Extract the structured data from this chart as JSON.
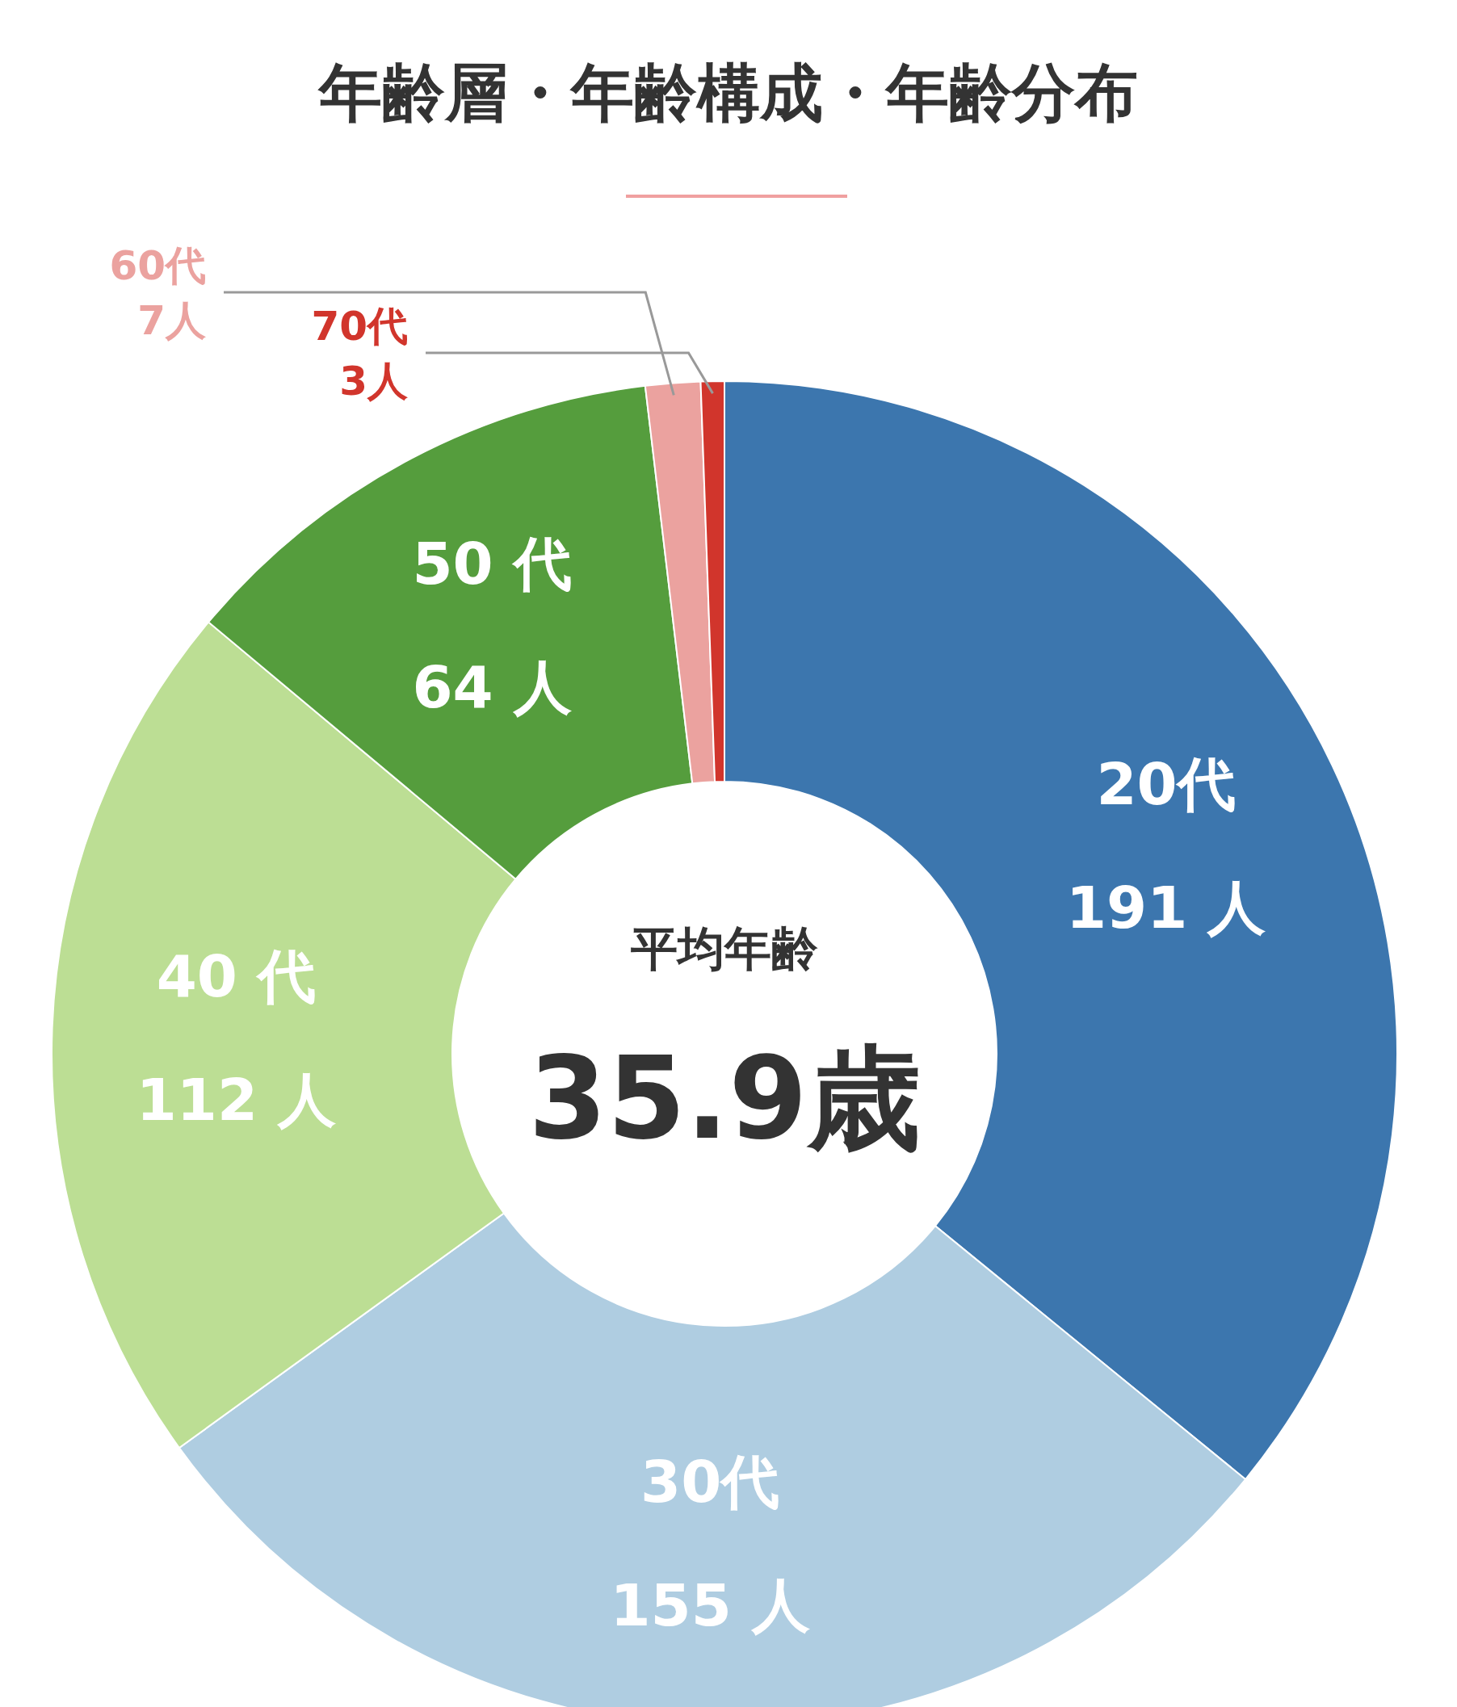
{
  "chart_data": {
    "type": "donut",
    "title": "年齢層・年齢構成・年齢分布",
    "categories": [
      "20代",
      "30代",
      "40 代",
      "50 代",
      "60代",
      "70代"
    ],
    "values": [
      191,
      155,
      112,
      64,
      7,
      3
    ],
    "colors": [
      "#3c76ae",
      "#afcde1",
      "#bcde94",
      "#559d3d",
      "#eba29f",
      "#d1352c"
    ],
    "value_labels": [
      "191 人",
      "155 人",
      "112 人",
      "64 人",
      "7人",
      "3人"
    ],
    "annotations": [
      "平均年齢",
      "35.9歳"
    ]
  }
}
